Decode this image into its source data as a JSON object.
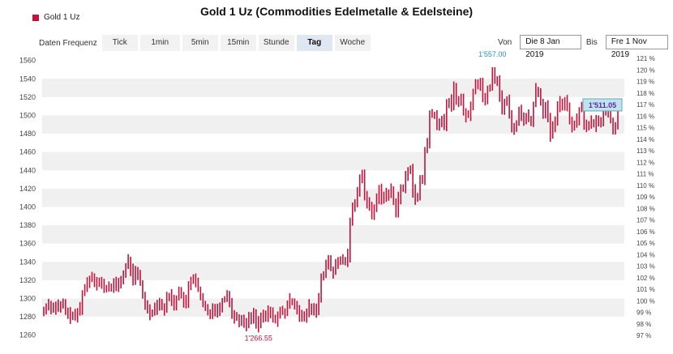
{
  "title": "Gold 1 Uz (Commodities Edelmetalle & Edelsteine)",
  "legend": {
    "label": "Gold 1 Uz",
    "color": "#c0143c"
  },
  "frequency": {
    "label": "Daten Frequenz",
    "options": [
      "Tick",
      "1min",
      "5min",
      "15min",
      "Stunde",
      "Tag",
      "Woche"
    ],
    "selected": "Tag"
  },
  "range": {
    "from_label": "Von",
    "from_value": "Die 8 Jan 2019",
    "to_label": "Bis",
    "to_value": "Fre 1 Nov 2019"
  },
  "chart_data": {
    "type": "ohlc",
    "ylim": [
      1250,
      1565
    ],
    "left_ticks": [
      1260,
      1280,
      1300,
      1320,
      1340,
      1360,
      1380,
      1400,
      1420,
      1440,
      1460,
      1480,
      1500,
      1520,
      1540,
      1560
    ],
    "right_ticks": [
      "97 %",
      "98 %",
      "99 %",
      "100 %",
      "101 %",
      "102 %",
      "103 %",
      "104 %",
      "105 %",
      "106 %",
      "107 %",
      "108 %",
      "109 %",
      "110 %",
      "111 %",
      "112 %",
      "113 %",
      "114 %",
      "115 %",
      "116 %",
      "117 %",
      "118 %",
      "119 %",
      "120 %",
      "121 %"
    ],
    "max_label": "1'557.00",
    "min_label": "1'266.55",
    "last_label": "1'511.05",
    "max_value": 1557.0,
    "min_value": 1266.55,
    "last_value": 1511.05,
    "grid": true,
    "bar_color": "#c0143c",
    "closes": [
      1286,
      1292,
      1295,
      1290,
      1289,
      1293,
      1288,
      1292,
      1294,
      1287,
      1280,
      1283,
      1281,
      1279,
      1285,
      1290,
      1306,
      1311,
      1318,
      1322,
      1325,
      1320,
      1316,
      1318,
      1315,
      1312,
      1310,
      1314,
      1312,
      1316,
      1312,
      1318,
      1320,
      1326,
      1335,
      1342,
      1331,
      1322,
      1328,
      1326,
      1316,
      1304,
      1292,
      1290,
      1284,
      1286,
      1290,
      1296,
      1294,
      1292,
      1288,
      1300,
      1304,
      1298,
      1294,
      1300,
      1310,
      1302,
      1297,
      1292,
      1314,
      1320,
      1324,
      1316,
      1310,
      1300,
      1293,
      1289,
      1286,
      1284,
      1290,
      1288,
      1285,
      1292,
      1298,
      1300,
      1306,
      1296,
      1282,
      1280,
      1280,
      1276,
      1275,
      1274,
      1272,
      1278,
      1280,
      1283,
      1275,
      1270,
      1280,
      1279,
      1281,
      1286,
      1283,
      1280,
      1277,
      1281,
      1285,
      1286,
      1283,
      1294,
      1298,
      1297,
      1294,
      1289,
      1282,
      1279,
      1278,
      1285,
      1292,
      1285,
      1290,
      1284,
      1302,
      1325,
      1325,
      1335,
      1343,
      1332,
      1328,
      1336,
      1340,
      1342,
      1342,
      1342,
      1347,
      1384,
      1398,
      1406,
      1419,
      1430,
      1437,
      1410,
      1404,
      1402,
      1392,
      1400,
      1407,
      1420,
      1408,
      1414,
      1412,
      1414,
      1420,
      1405,
      1396,
      1410,
      1420,
      1419,
      1432,
      1440,
      1443,
      1418,
      1408,
      1410,
      1430,
      1429,
      1462,
      1470,
      1500,
      1502,
      1501,
      1486,
      1491,
      1497,
      1490,
      1510,
      1516,
      1512,
      1530,
      1519,
      1513,
      1518,
      1504,
      1500,
      1500,
      1509,
      1527,
      1537,
      1532,
      1536,
      1522,
      1515,
      1530,
      1531,
      1550,
      1539,
      1539,
      1520,
      1507,
      1514,
      1516,
      1500,
      1486,
      1487,
      1492,
      1505,
      1500,
      1495,
      1500,
      1495,
      1492,
      1513,
      1529,
      1525,
      1516,
      1503,
      1510,
      1495,
      1478,
      1486,
      1495,
      1508,
      1514,
      1512,
      1517,
      1510,
      1496,
      1486,
      1490,
      1497,
      1507,
      1509,
      1492,
      1488,
      1488,
      1493,
      1489,
      1494,
      1490,
      1496,
      1502,
      1503,
      1505,
      1494,
      1484,
      1490,
      1511
    ]
  }
}
